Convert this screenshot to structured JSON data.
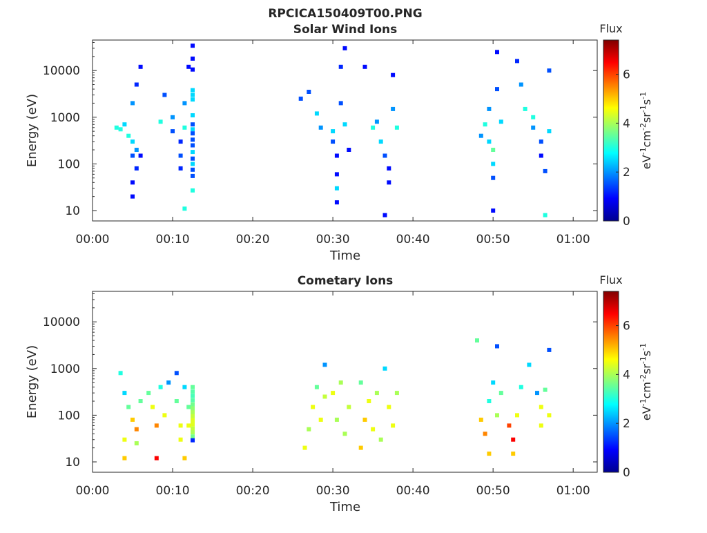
{
  "figure": {
    "title": "RPCICA150409T00.PNG"
  },
  "chart_data": [
    {
      "type": "heatmap",
      "title": "Solar Wind Ions",
      "xlabel": "Time",
      "ylabel": "Energy (eV)",
      "x_unit": "minutes",
      "xlim": [
        0,
        63
      ],
      "ylim": [
        6,
        45000
      ],
      "y_scale": "log",
      "xtick_labels": [
        "00:00",
        "00:10",
        "00:20",
        "00:30",
        "00:40",
        "00:50",
        "01:00"
      ],
      "ytick_labels": [
        "10",
        "100",
        "1000",
        "10000"
      ],
      "colorbar": {
        "label": "Flux",
        "unit": "eV-1cm-2sr-1s-1",
        "range": [
          0,
          7.4
        ],
        "ticks": [
          "0",
          "2",
          "4",
          "6"
        ]
      },
      "cells": [
        [
          3,
          600,
          3
        ],
        [
          3.5,
          550,
          3
        ],
        [
          4,
          700,
          2.5
        ],
        [
          4.5,
          400,
          3
        ],
        [
          5,
          300,
          2.5
        ],
        [
          5,
          150,
          1.5
        ],
        [
          5,
          40,
          1
        ],
        [
          5,
          20,
          1
        ],
        [
          5.5,
          200,
          2
        ],
        [
          5.5,
          80,
          1.2
        ],
        [
          5.5,
          5000,
          1.2
        ],
        [
          5,
          2000,
          2
        ],
        [
          6,
          12000,
          1
        ],
        [
          6,
          150,
          1
        ],
        [
          8.5,
          800,
          3
        ],
        [
          9,
          3000,
          1.5
        ],
        [
          10,
          1000,
          2
        ],
        [
          10,
          500,
          1.5
        ],
        [
          11,
          300,
          1.2
        ],
        [
          11,
          150,
          1.5
        ],
        [
          11,
          80,
          1.2
        ],
        [
          11.5,
          2000,
          2
        ],
        [
          11.5,
          600,
          3
        ],
        [
          12,
          12000,
          1
        ],
        [
          11.5,
          11,
          3
        ],
        [
          12.5,
          34000,
          1
        ],
        [
          12.5,
          18000,
          1
        ],
        [
          12.5,
          10500,
          1
        ],
        [
          12.5,
          3800,
          2.5
        ],
        [
          12.5,
          3000,
          2.5
        ],
        [
          12.5,
          2400,
          2.5
        ],
        [
          12.5,
          1100,
          2.5
        ],
        [
          12.5,
          700,
          1.5
        ],
        [
          12.5,
          550,
          2.5
        ],
        [
          12.5,
          450,
          1.5
        ],
        [
          12.5,
          330,
          1.5
        ],
        [
          12.5,
          250,
          1.5
        ],
        [
          12.5,
          180,
          2.5
        ],
        [
          12.5,
          130,
          1.5
        ],
        [
          12.5,
          100,
          2.5
        ],
        [
          12.5,
          75,
          1.5
        ],
        [
          12.5,
          55,
          1.5
        ],
        [
          12.5,
          27,
          3
        ],
        [
          26,
          2500,
          1.5
        ],
        [
          27,
          3500,
          1.5
        ],
        [
          28,
          1200,
          2.5
        ],
        [
          28.5,
          600,
          2
        ],
        [
          30,
          500,
          2.5
        ],
        [
          30,
          300,
          1.5
        ],
        [
          30.5,
          150,
          1
        ],
        [
          30.5,
          60,
          1
        ],
        [
          30.5,
          30,
          2.5
        ],
        [
          30.5,
          15,
          1
        ],
        [
          31,
          2000,
          1.5
        ],
        [
          31,
          12000,
          1.2
        ],
        [
          31.5,
          30000,
          1
        ],
        [
          31.5,
          700,
          2.5
        ],
        [
          32,
          200,
          1
        ],
        [
          34,
          12000,
          1
        ],
        [
          35,
          600,
          3
        ],
        [
          35.5,
          800,
          2
        ],
        [
          36,
          300,
          2.5
        ],
        [
          36.5,
          150,
          1.5
        ],
        [
          36.5,
          8,
          1
        ],
        [
          37,
          80,
          1
        ],
        [
          37,
          40,
          1
        ],
        [
          37.5,
          1500,
          2
        ],
        [
          37.5,
          8000,
          1
        ],
        [
          38,
          600,
          3
        ],
        [
          48.5,
          400,
          2
        ],
        [
          49,
          700,
          3
        ],
        [
          49.5,
          1500,
          2
        ],
        [
          49.5,
          300,
          2.5
        ],
        [
          50,
          200,
          3.5
        ],
        [
          50,
          100,
          2.5
        ],
        [
          50,
          50,
          1.5
        ],
        [
          50,
          10,
          1
        ],
        [
          50.5,
          25000,
          1
        ],
        [
          50.5,
          4000,
          1.5
        ],
        [
          51,
          800,
          2.5
        ],
        [
          53,
          16000,
          1.2
        ],
        [
          53.5,
          5000,
          2
        ],
        [
          54,
          1500,
          3
        ],
        [
          55,
          600,
          2
        ],
        [
          55,
          1000,
          3
        ],
        [
          56,
          300,
          1.5
        ],
        [
          56,
          150,
          1
        ],
        [
          56.5,
          70,
          1.5
        ],
        [
          56.5,
          8,
          3
        ],
        [
          57,
          500,
          2.5
        ],
        [
          57,
          10000,
          1.5
        ]
      ]
    },
    {
      "type": "heatmap",
      "title": "Cometary Ions",
      "xlabel": "Time",
      "ylabel": "Energy (eV)",
      "x_unit": "minutes",
      "xlim": [
        0,
        63
      ],
      "ylim": [
        6,
        45000
      ],
      "y_scale": "log",
      "xtick_labels": [
        "00:00",
        "00:10",
        "00:20",
        "00:30",
        "00:40",
        "00:50",
        "01:00"
      ],
      "ytick_labels": [
        "10",
        "100",
        "1000",
        "10000"
      ],
      "colorbar": {
        "label": "Flux",
        "unit": "eV-1cm-2sr-1s-1",
        "range": [
          0,
          7.4
        ],
        "ticks": [
          "0",
          "2",
          "4",
          "6"
        ]
      },
      "cells": [
        [
          3.5,
          800,
          3
        ],
        [
          4,
          300,
          2.5
        ],
        [
          4,
          30,
          4.5
        ],
        [
          4,
          12,
          5
        ],
        [
          4.5,
          150,
          3.5
        ],
        [
          5,
          80,
          5
        ],
        [
          5.5,
          50,
          5.5
        ],
        [
          5.5,
          25,
          4
        ],
        [
          6,
          200,
          3.5
        ],
        [
          7,
          300,
          3.5
        ],
        [
          7.5,
          150,
          4.5
        ],
        [
          8,
          60,
          5.5
        ],
        [
          8,
          12,
          6.5
        ],
        [
          8.5,
          400,
          3
        ],
        [
          9,
          100,
          4.5
        ],
        [
          9.5,
          500,
          2
        ],
        [
          10.5,
          800,
          1.5
        ],
        [
          10.5,
          200,
          3.5
        ],
        [
          11,
          60,
          4.5
        ],
        [
          11,
          30,
          4.5
        ],
        [
          11.5,
          12,
          5
        ],
        [
          11.5,
          400,
          2.5
        ],
        [
          12,
          150,
          3.5
        ],
        [
          12,
          60,
          4.5
        ],
        [
          12.5,
          400,
          3.5
        ],
        [
          12.5,
          320,
          3.4
        ],
        [
          12.5,
          260,
          3.3
        ],
        [
          12.5,
          210,
          3.4
        ],
        [
          12.5,
          170,
          3.6
        ],
        [
          12.5,
          140,
          3.8
        ],
        [
          12.5,
          115,
          4
        ],
        [
          12.5,
          95,
          4.2
        ],
        [
          12.5,
          78,
          4.4
        ],
        [
          12.5,
          64,
          4.4
        ],
        [
          12.5,
          52,
          4.2
        ],
        [
          12.5,
          43,
          4
        ],
        [
          12.5,
          35,
          3.6
        ],
        [
          12.5,
          29,
          1.2
        ],
        [
          26.5,
          20,
          4.5
        ],
        [
          27,
          50,
          4
        ],
        [
          27.5,
          150,
          4.5
        ],
        [
          28,
          400,
          3.5
        ],
        [
          28.5,
          80,
          4.5
        ],
        [
          29,
          250,
          4.2
        ],
        [
          29,
          1200,
          2
        ],
        [
          30,
          300,
          4.5
        ],
        [
          30.5,
          80,
          4
        ],
        [
          31,
          500,
          4
        ],
        [
          31.5,
          40,
          4
        ],
        [
          32,
          150,
          4.2
        ],
        [
          33.5,
          500,
          3.5
        ],
        [
          33.5,
          20,
          5
        ],
        [
          34,
          80,
          5
        ],
        [
          34.5,
          200,
          4.5
        ],
        [
          35,
          50,
          4.5
        ],
        [
          35.5,
          300,
          4
        ],
        [
          36,
          30,
          4
        ],
        [
          36.5,
          1000,
          2.5
        ],
        [
          37,
          150,
          4.5
        ],
        [
          37.5,
          60,
          4.5
        ],
        [
          38,
          300,
          4
        ],
        [
          48,
          4000,
          3.5
        ],
        [
          48.5,
          80,
          5
        ],
        [
          49,
          40,
          5.5
        ],
        [
          49.5,
          15,
          5
        ],
        [
          49.5,
          200,
          3
        ],
        [
          50,
          500,
          2.5
        ],
        [
          50.5,
          100,
          4
        ],
        [
          50.5,
          3000,
          1.5
        ],
        [
          51,
          300,
          3.5
        ],
        [
          52,
          60,
          6
        ],
        [
          52.5,
          30,
          6.5
        ],
        [
          52.5,
          15,
          5
        ],
        [
          53,
          100,
          4.5
        ],
        [
          53.5,
          400,
          3
        ],
        [
          54.5,
          1200,
          2.5
        ],
        [
          55.5,
          300,
          2
        ],
        [
          56,
          150,
          4.5
        ],
        [
          56,
          60,
          4.5
        ],
        [
          56.5,
          350,
          3.5
        ],
        [
          57,
          100,
          4.5
        ],
        [
          57,
          2500,
          1.5
        ]
      ]
    }
  ]
}
